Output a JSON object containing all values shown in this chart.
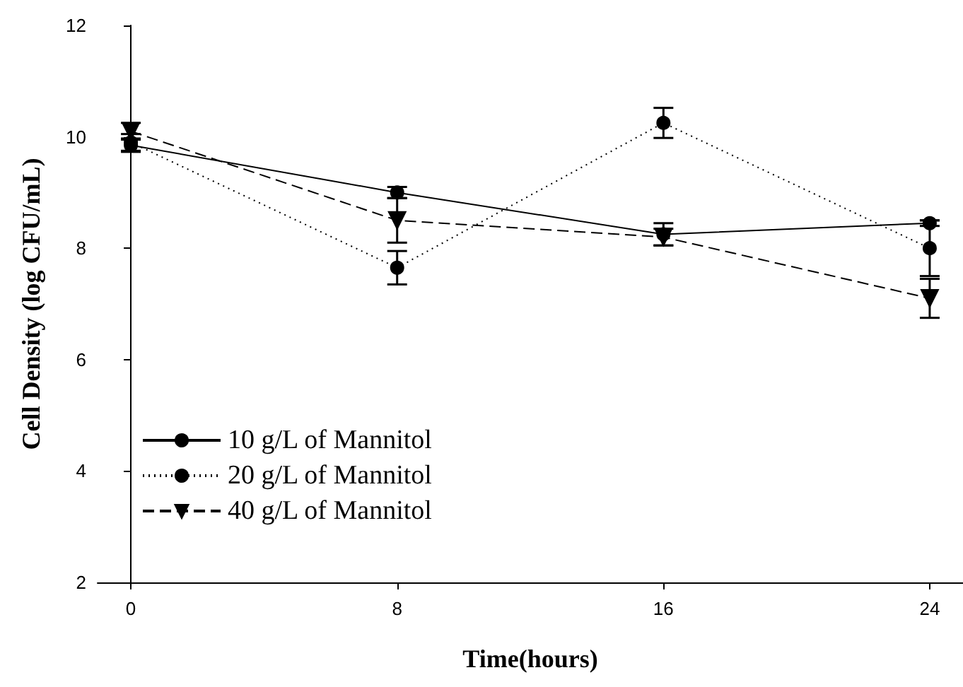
{
  "chart_data": {
    "type": "line",
    "xlabel": "Time(hours)",
    "ylabel": "Cell Density (log CFU/mL)",
    "x": [
      0,
      8,
      16,
      24
    ],
    "xlim": [
      -1,
      25
    ],
    "xticks": [
      0,
      8,
      16,
      24
    ],
    "ylim": [
      2,
      12
    ],
    "yticks": [
      2,
      4,
      6,
      8,
      10,
      12
    ],
    "grid": false,
    "legend": "bottom left",
    "series": [
      {
        "name": "10 g/L of Mannitol",
        "color": "#000000",
        "marker": "circle",
        "line_style": "solid",
        "values": [
          9.85,
          9.0,
          8.25,
          8.45
        ],
        "errors": [
          0.12,
          0.1,
          0.2,
          0.05
        ]
      },
      {
        "name": "20 g/L of Mannitol",
        "color": "#000000",
        "marker": "circle",
        "line_style": "dotted",
        "values": [
          9.9,
          7.65,
          10.25,
          8.0
        ],
        "errors": [
          0.15,
          0.3,
          0.27,
          0.5
        ]
      },
      {
        "name": "40 g/L of Mannitol",
        "color": "#000000",
        "marker": "triangle",
        "line_style": "dashed",
        "values": [
          10.1,
          8.5,
          8.2,
          7.1
        ],
        "errors": [
          0.15,
          0.4,
          0.15,
          0.35
        ]
      }
    ]
  }
}
